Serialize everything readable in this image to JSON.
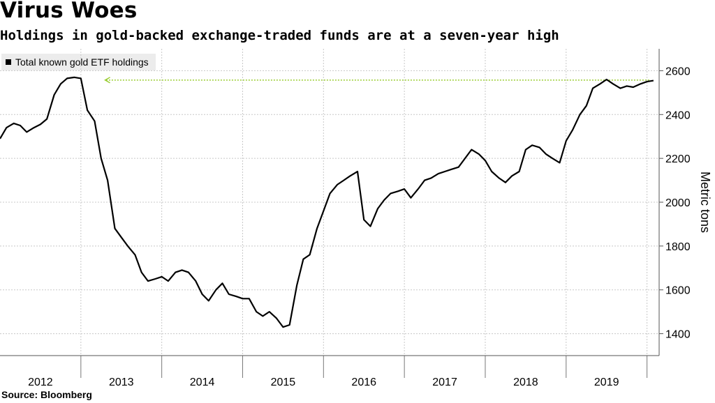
{
  "title": "Virus Woes",
  "subtitle": "Holdings in gold-backed exchange-traded funds are at a seven-year high",
  "source": "Source: Bloomberg",
  "colors": {
    "line": "#000000",
    "annotation": "#9acd32",
    "grid": "#c8c8c8",
    "legend_bg": "#ececec"
  },
  "chart_data": {
    "type": "line",
    "title": "Virus Woes",
    "subtitle": "Holdings in gold-backed exchange-traded funds are at a seven-year high",
    "ylabel": "Metric tons",
    "xlabel": "",
    "xlim": [
      2012.0,
      2020.15
    ],
    "ylim": [
      1300,
      2700
    ],
    "y_ticks": [
      1400,
      1600,
      1800,
      2000,
      2200,
      2400,
      2600
    ],
    "y_axis_position": "right",
    "x_ticks": [
      "2012",
      "2013",
      "2014",
      "2015",
      "2016",
      "2017",
      "2018",
      "2019"
    ],
    "grid": true,
    "legend_placement": "top-left",
    "annotation": "dotted arrow from latest value back to 2012 peak",
    "series": [
      {
        "name": "Total known gold ETF holdings",
        "x": [
          2012.0,
          2012.08,
          2012.17,
          2012.25,
          2012.33,
          2012.42,
          2012.5,
          2012.58,
          2012.67,
          2012.75,
          2012.83,
          2012.92,
          2013.0,
          2013.08,
          2013.17,
          2013.25,
          2013.33,
          2013.42,
          2013.5,
          2013.58,
          2013.67,
          2013.75,
          2013.83,
          2013.92,
          2014.0,
          2014.08,
          2014.17,
          2014.25,
          2014.33,
          2014.42,
          2014.5,
          2014.58,
          2014.67,
          2014.75,
          2014.83,
          2014.92,
          2015.0,
          2015.08,
          2015.17,
          2015.25,
          2015.33,
          2015.42,
          2015.5,
          2015.58,
          2015.67,
          2015.75,
          2015.83,
          2015.92,
          2016.0,
          2016.08,
          2016.17,
          2016.25,
          2016.33,
          2016.42,
          2016.5,
          2016.58,
          2016.67,
          2016.75,
          2016.83,
          2016.92,
          2017.0,
          2017.08,
          2017.17,
          2017.25,
          2017.33,
          2017.42,
          2017.5,
          2017.58,
          2017.67,
          2017.75,
          2017.83,
          2017.92,
          2018.0,
          2018.08,
          2018.17,
          2018.25,
          2018.33,
          2018.42,
          2018.5,
          2018.58,
          2018.67,
          2018.75,
          2018.83,
          2018.92,
          2019.0,
          2019.08,
          2019.17,
          2019.25,
          2019.33,
          2019.42,
          2019.5,
          2019.58,
          2019.67,
          2019.75,
          2019.83,
          2019.92,
          2020.0,
          2020.08
        ],
        "values": [
          2290,
          2340,
          2360,
          2350,
          2320,
          2340,
          2355,
          2380,
          2490,
          2540,
          2565,
          2570,
          2565,
          2420,
          2370,
          2200,
          2100,
          1880,
          1840,
          1800,
          1760,
          1680,
          1640,
          1650,
          1660,
          1640,
          1680,
          1690,
          1680,
          1640,
          1580,
          1550,
          1600,
          1630,
          1580,
          1570,
          1560,
          1560,
          1500,
          1480,
          1500,
          1470,
          1430,
          1440,
          1620,
          1740,
          1760,
          1880,
          1960,
          2040,
          2080,
          2100,
          2120,
          2140,
          1920,
          1890,
          1970,
          2010,
          2040,
          2050,
          2060,
          2020,
          2060,
          2100,
          2110,
          2130,
          2140,
          2150,
          2160,
          2200,
          2240,
          2220,
          2190,
          2140,
          2110,
          2090,
          2120,
          2140,
          2240,
          2260,
          2250,
          2220,
          2200,
          2180,
          2280,
          2330,
          2400,
          2440,
          2520,
          2540,
          2560,
          2540,
          2520,
          2530,
          2525,
          2540,
          2550,
          2555
        ]
      }
    ]
  }
}
